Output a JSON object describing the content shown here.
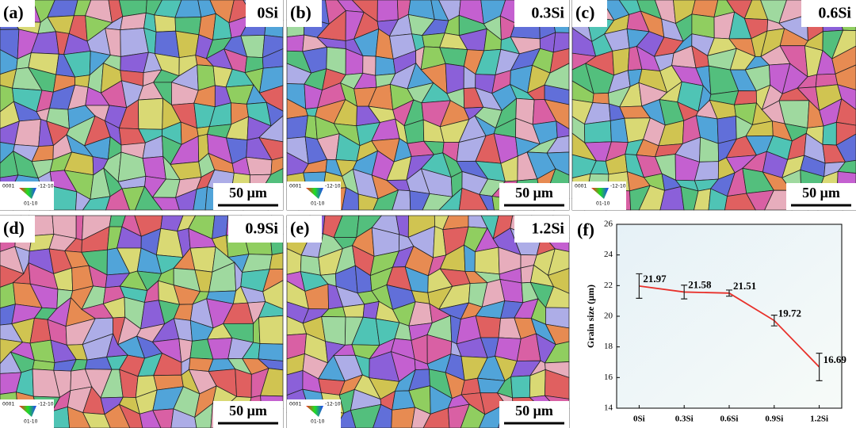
{
  "panels": [
    {
      "label": "(a)",
      "composition": "0Si",
      "scale_bar": "50 μm",
      "ipf_labels": [
        "0001",
        "-12-10",
        "01-10"
      ]
    },
    {
      "label": "(b)",
      "composition": "0.3Si",
      "scale_bar": "50 μm",
      "ipf_labels": [
        "0001",
        "-12-10",
        "01-10"
      ]
    },
    {
      "label": "(c)",
      "composition": "0.6Si",
      "scale_bar": "50 μm",
      "ipf_labels": [
        "0001",
        "-12-10",
        "01-10"
      ]
    },
    {
      "label": "(d)",
      "composition": "0.9Si",
      "scale_bar": "50 μm",
      "ipf_labels": [
        "0001",
        "-12-10",
        "01-10"
      ]
    },
    {
      "label": "(e)",
      "composition": "1.2Si",
      "scale_bar": "50 μm",
      "ipf_labels": [
        "0001",
        "-12-10",
        "01-10"
      ]
    }
  ],
  "chart_data": {
    "type": "line",
    "label": "(f)",
    "y_label": "Grain size (μm)",
    "categories": [
      "0Si",
      "0.3Si",
      "0.6Si",
      "0.9Si",
      "1.2Si"
    ],
    "values": [
      21.97,
      21.58,
      21.51,
      19.72,
      16.69
    ],
    "errors": [
      0.8,
      0.45,
      0.2,
      0.35,
      0.9
    ],
    "color": "#e8302a",
    "ylim": [
      14,
      26
    ],
    "yticks": [
      14,
      16,
      18,
      20,
      22,
      24,
      26
    ]
  }
}
